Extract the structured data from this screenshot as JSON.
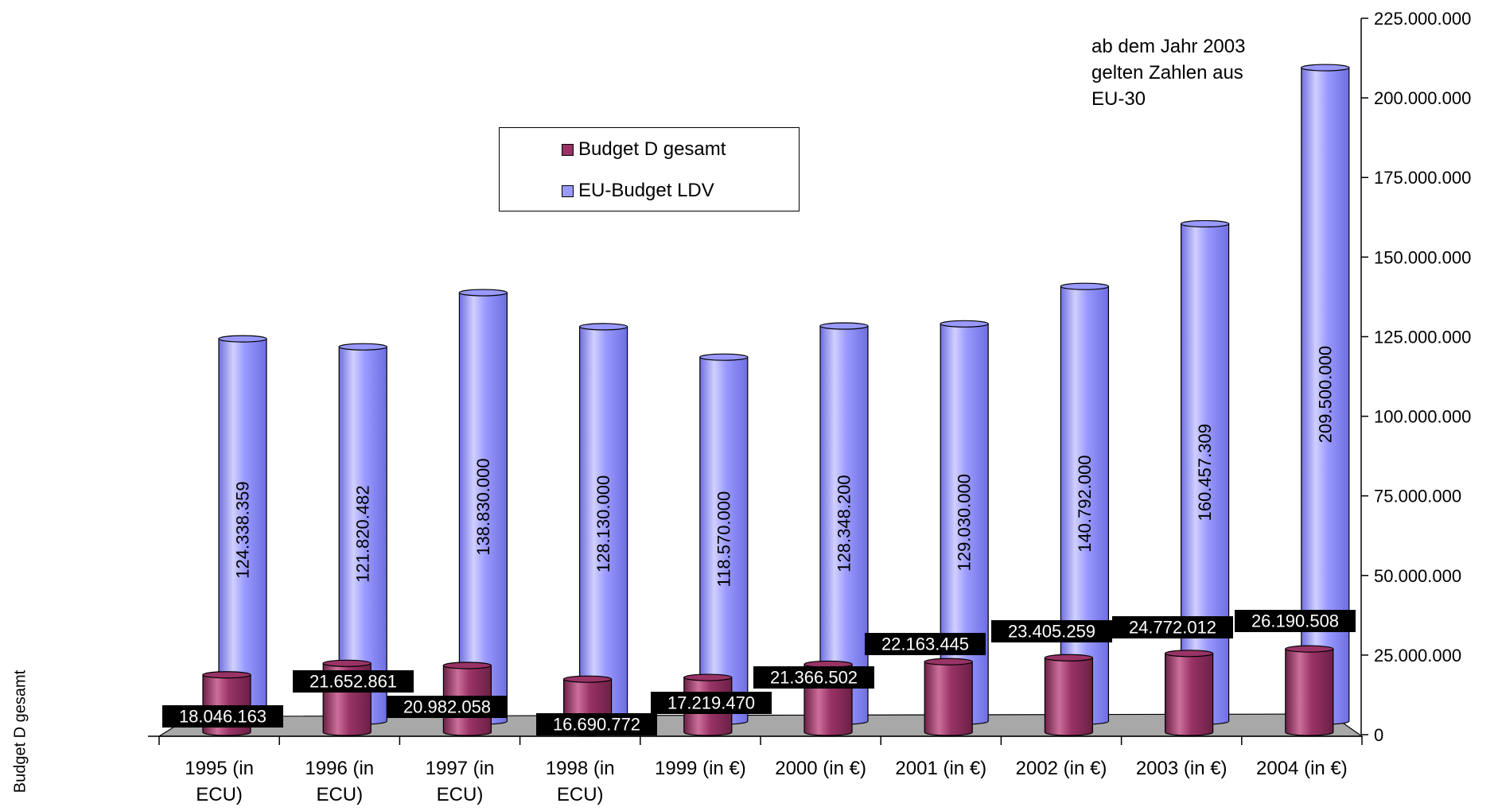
{
  "chart_data": {
    "type": "bar",
    "variant": "3d-cylinder",
    "categories": [
      "1995 (in ECU)",
      "1996 (in ECU)",
      "1997 (in ECU)",
      "1998 (in ECU)",
      "1999 (in €)",
      "2000 (in €)",
      "2001 (in €)",
      "2002 (in €)",
      "2003 (in €)",
      "2004 (in €)"
    ],
    "category_lines": [
      [
        "1995 (in",
        "ECU)"
      ],
      [
        "1996 (in",
        "ECU)"
      ],
      [
        "1997 (in",
        "ECU)"
      ],
      [
        "1998 (in",
        "ECU)"
      ],
      [
        "1999 (in €)"
      ],
      [
        "2000 (in €)"
      ],
      [
        "2001 (in €)"
      ],
      [
        "2002 (in €)"
      ],
      [
        "2003 (in €)"
      ],
      [
        "2004 (in €)"
      ]
    ],
    "series": [
      {
        "name": "Budget D gesamt",
        "color": "#993366",
        "values": [
          18046163,
          21652861,
          20982058,
          16690772,
          17219470,
          21366502,
          22163445,
          23405259,
          24772012,
          26190508
        ],
        "labels": [
          "18.046.163",
          "21.652.861",
          "20.982.058",
          "16.690.772",
          "17.219.470",
          "21.366.502",
          "22.163.445",
          "23.405.259",
          "24.772.012",
          "26.190.508"
        ]
      },
      {
        "name": "EU-Budget LDV",
        "color": "#9999ff",
        "values": [
          124338359,
          121820482,
          138830000,
          128130000,
          118570000,
          128348200,
          129030000,
          140792000,
          160457309,
          209500000
        ],
        "labels": [
          "124.338.359",
          "121.820.482",
          "138.830.000",
          "128.130.000",
          "118.570.000",
          "128.348.200",
          "129.030.000",
          "140.792.000",
          "160.457.309",
          "209.500.000"
        ]
      }
    ],
    "y_axis": {
      "position": "right",
      "min": 0,
      "max": 225000000,
      "step": 25000000,
      "tick_labels": [
        "0",
        "25.000.000",
        "50.000.000",
        "75.000.000",
        "100.000.000",
        "125.000.000",
        "150.000.000",
        "175.000.000",
        "200.000.000",
        "225.000.000"
      ]
    },
    "side_axis_label": "Budget D gesamt",
    "annotation": "ab dem Jahr 2003 gelten Zahlen aus EU-30",
    "legend_position": "top-center",
    "grid": false
  }
}
